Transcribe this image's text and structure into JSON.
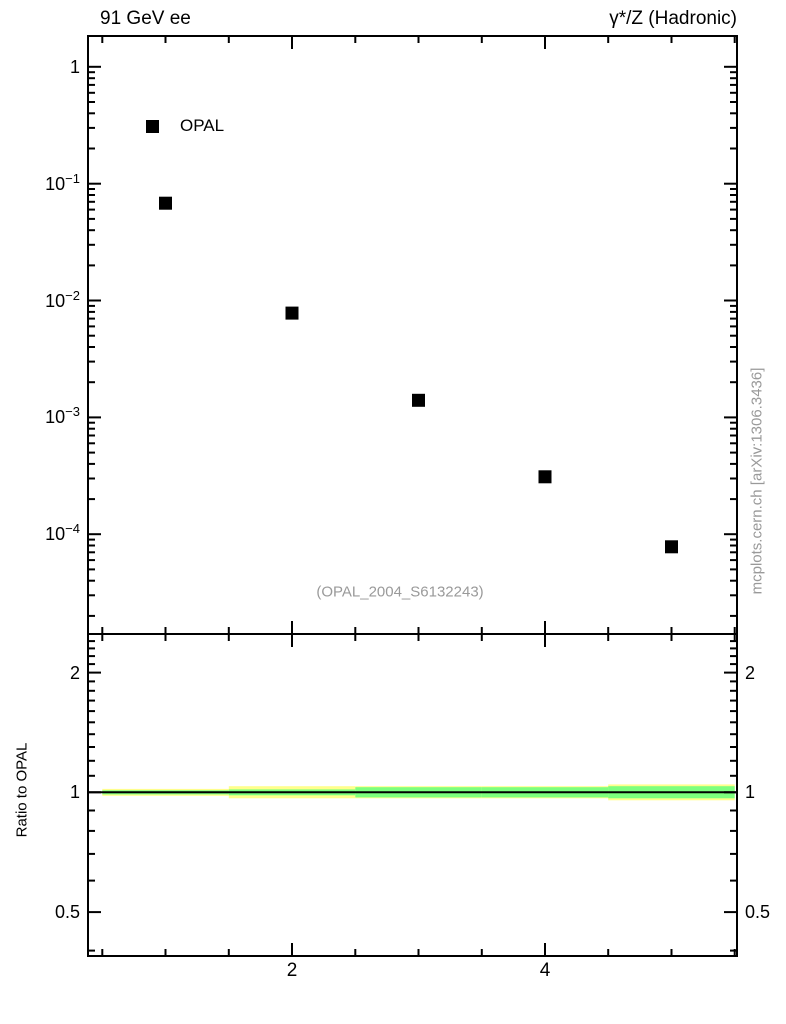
{
  "chart_data": {
    "type": "scatter",
    "title_left": "91 GeV ee",
    "title_right": "γ*/Z (Hadronic)",
    "watermark": "(OPAL_2004_S6132243)",
    "side_text": "mcplots.cern.ch [arXiv:1306.3436]",
    "legend": [
      {
        "label": "OPAL",
        "marker": "filled-square",
        "color": "#000000"
      }
    ],
    "main_panel": {
      "x_scale": "linear",
      "y_scale": "log",
      "x_range": [
        0.395,
        5.51
      ],
      "y_range": [
        1.4e-05,
        1.8
      ],
      "x_major_ticks": [
        2,
        4
      ],
      "x_minor_step": 0.5,
      "y_major_ticks": [
        1,
        0.1,
        0.01,
        0.001,
        0.0001
      ],
      "y_tick_labels": [
        {
          "value": 1,
          "main": "1",
          "sup": ""
        },
        {
          "value": 0.1,
          "main": "10",
          "sup": "−1"
        },
        {
          "value": 0.01,
          "main": "10",
          "sup": "−2"
        },
        {
          "value": 0.001,
          "main": "10",
          "sup": "−3"
        },
        {
          "value": 0.0001,
          "main": "10",
          "sup": "−4"
        }
      ],
      "series": [
        {
          "name": "OPAL",
          "marker": "filled-square",
          "color": "#000000",
          "marker_size": 13,
          "points": [
            [
              1,
              0.068
            ],
            [
              2,
              0.0078
            ],
            [
              3,
              0.0014
            ],
            [
              4,
              0.00031
            ],
            [
              5,
              7.8e-05
            ]
          ]
        }
      ]
    },
    "ratio_panel": {
      "ylabel": "Ratio to OPAL",
      "y_scale": "log",
      "y_range": [
        0.39,
        2.5
      ],
      "y_major_ticks": [
        2,
        1,
        0.5
      ],
      "y_tick_labels": [
        {
          "value": 2,
          "text": "2"
        },
        {
          "value": 1,
          "text": "1"
        },
        {
          "value": 0.5,
          "text": "0.5"
        }
      ],
      "reference_line": {
        "y": 1.0,
        "color": "#000000"
      },
      "band_colors": {
        "yellow": "#ffff8c",
        "green": "#7dff7d"
      },
      "bands": [
        {
          "x": [
            0.5,
            1.5
          ],
          "yellow": [
            0.98,
            1.02
          ],
          "green": [
            0.988,
            1.012
          ]
        },
        {
          "x": [
            1.5,
            2.5
          ],
          "yellow": [
            0.966,
            1.036
          ],
          "green": [
            0.983,
            1.017
          ]
        },
        {
          "x": [
            2.5,
            3.5
          ],
          "yellow": [
            0.966,
            1.036
          ],
          "green": [
            0.971,
            1.03
          ]
        },
        {
          "x": [
            3.5,
            4.5
          ],
          "yellow": [
            0.966,
            1.036
          ],
          "green": [
            0.971,
            1.03
          ]
        },
        {
          "x": [
            4.5,
            5.5
          ],
          "yellow": [
            0.955,
            1.047
          ],
          "green": [
            0.966,
            1.036
          ]
        }
      ]
    },
    "x_tick_labels": [
      {
        "value": 2,
        "text": "2"
      },
      {
        "value": 4,
        "text": "4"
      }
    ],
    "frame_color": "#000000"
  }
}
